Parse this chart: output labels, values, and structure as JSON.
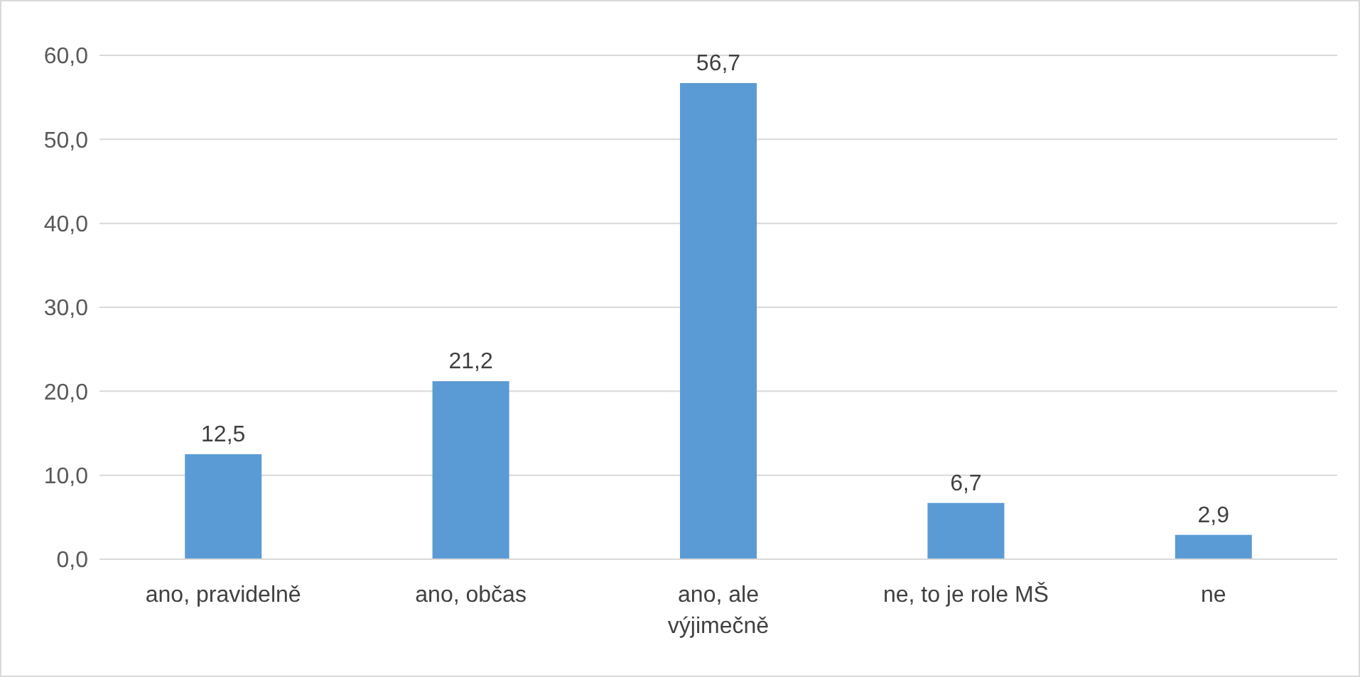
{
  "chart_data": {
    "type": "bar",
    "categories": [
      "ano, pravidelně",
      "ano, občas",
      "ano, ale výjimečně",
      "ne, to je role MŠ",
      "ne"
    ],
    "values": [
      12.5,
      21.2,
      56.7,
      6.7,
      2.9
    ],
    "value_labels": [
      "12,5",
      "21,2",
      "56,7",
      "6,7",
      "2,9"
    ],
    "color": "#5b9bd5",
    "ylim": [
      0,
      60
    ],
    "yticks": [
      {
        "value": 0,
        "label": "0,0"
      },
      {
        "value": 10,
        "label": "10,0"
      },
      {
        "value": 20,
        "label": "20,0"
      },
      {
        "value": 30,
        "label": "30,0"
      },
      {
        "value": 40,
        "label": "40,0"
      },
      {
        "value": 50,
        "label": "50,0"
      },
      {
        "value": 60,
        "label": "60,0"
      }
    ],
    "grid": "y"
  }
}
